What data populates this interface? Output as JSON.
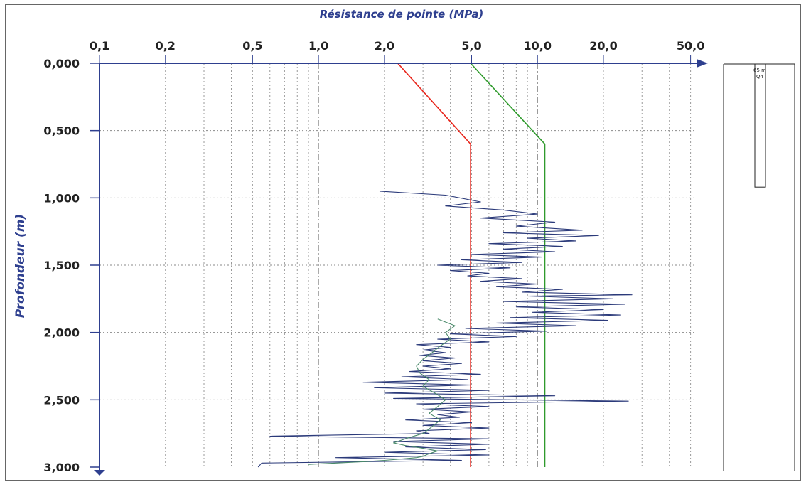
{
  "chart_data": {
    "type": "line",
    "title": "Résistance de pointe (MPa)",
    "ylabel": "Profondeur (m)",
    "x_scale": "log",
    "x_range": [
      0.1,
      60
    ],
    "y_range": [
      0,
      3
    ],
    "y_inverted": true,
    "x_tick_labels": [
      {
        "value": 0.1,
        "label": "0,1"
      },
      {
        "value": 0.2,
        "label": "0,2"
      },
      {
        "value": 0.5,
        "label": "0,5"
      },
      {
        "value": 1.0,
        "label": "1,0"
      },
      {
        "value": 2.0,
        "label": "2,0"
      },
      {
        "value": 5.0,
        "label": "5,0"
      },
      {
        "value": 10.0,
        "label": "10,0"
      },
      {
        "value": 20.0,
        "label": "20,0"
      },
      {
        "value": 50.0,
        "label": "50,0"
      }
    ],
    "y_tick_labels": [
      {
        "value": 0.0,
        "label": "0,000"
      },
      {
        "value": 0.5,
        "label": "0,500"
      },
      {
        "value": 1.0,
        "label": "1,000"
      },
      {
        "value": 1.5,
        "label": "1,500"
      },
      {
        "value": 2.0,
        "label": "2,000"
      },
      {
        "value": 2.5,
        "label": "2,500"
      },
      {
        "value": 3.0,
        "label": "3,000"
      }
    ],
    "x_grid_values": [
      0.2,
      0.3,
      0.4,
      0.5,
      0.6,
      0.7,
      0.8,
      0.9,
      2,
      3,
      4,
      5,
      6,
      7,
      8,
      9,
      20,
      30,
      40,
      50
    ],
    "x_decade_grid_values": [
      1,
      10
    ],
    "y_grid_values": [
      0.5,
      1.0,
      1.5,
      2.0,
      2.5
    ],
    "grid": true,
    "series": [
      {
        "color": "#e8241a",
        "x": [
          2.3,
          4.95,
          4.95
        ],
        "y": [
          0.0,
          0.6,
          3.0
        ]
      },
      {
        "color": "#2f9a2c",
        "x": [
          4.95,
          10.8,
          10.8
        ],
        "y": [
          0.0,
          0.6,
          3.0
        ]
      },
      {
        "color": "#2b3a7a",
        "x": [
          1.9,
          3.8,
          5.5,
          3.8,
          7.0,
          10.0,
          5.5,
          12.0,
          8.0,
          16.0,
          7.0,
          19.0,
          9.0,
          15.0,
          6.0,
          13.0,
          7.0,
          12.0,
          5.0,
          10.5,
          4.5,
          8.5,
          3.5,
          7.5,
          4.0,
          6.0,
          4.8,
          8.5,
          5.5,
          10.0,
          6.5,
          13.0,
          8.5,
          27.0,
          9.0,
          22.0,
          7.0,
          25.0,
          8.0,
          20.0,
          9.5,
          24.0,
          7.5,
          21.0,
          6.5,
          15.0,
          4.7,
          11.0,
          4.0,
          8.0,
          3.5,
          6.0,
          2.8,
          4.0,
          3.0,
          3.8,
          2.9,
          4.2,
          3.0,
          4.5,
          3.0,
          4.0,
          2.6,
          5.5,
          2.4,
          4.8,
          1.6,
          5.0,
          1.8,
          6.0,
          2.0,
          12.0,
          2.2,
          26.0,
          2.8,
          6.0,
          3.0,
          5.0,
          3.5,
          4.4,
          2.5,
          5.0,
          3.0,
          6.0,
          2.8,
          3.2,
          0.6,
          6.0,
          2.2,
          6.0,
          2.5,
          5.8,
          2.0,
          6.0,
          1.2,
          4.5,
          0.55,
          0.53
        ],
        "y": [
          0.95,
          0.98,
          1.03,
          1.06,
          1.09,
          1.12,
          1.15,
          1.18,
          1.21,
          1.24,
          1.26,
          1.28,
          1.3,
          1.32,
          1.34,
          1.36,
          1.38,
          1.4,
          1.42,
          1.44,
          1.46,
          1.48,
          1.5,
          1.52,
          1.54,
          1.56,
          1.58,
          1.6,
          1.62,
          1.64,
          1.66,
          1.68,
          1.7,
          1.72,
          1.73,
          1.75,
          1.77,
          1.79,
          1.81,
          1.83,
          1.85,
          1.87,
          1.89,
          1.91,
          1.93,
          1.95,
          1.97,
          1.99,
          2.01,
          2.03,
          2.05,
          2.07,
          2.09,
          2.11,
          2.13,
          2.15,
          2.17,
          2.19,
          2.21,
          2.23,
          2.25,
          2.27,
          2.29,
          2.31,
          2.33,
          2.35,
          2.37,
          2.39,
          2.41,
          2.43,
          2.45,
          2.47,
          2.49,
          2.51,
          2.53,
          2.55,
          2.57,
          2.59,
          2.61,
          2.63,
          2.65,
          2.67,
          2.69,
          2.71,
          2.73,
          2.75,
          2.77,
          2.79,
          2.81,
          2.83,
          2.85,
          2.87,
          2.89,
          2.91,
          2.93,
          2.95,
          2.97,
          3.0
        ]
      },
      {
        "color": "#4a8a6a",
        "x": [
          3.5,
          4.2,
          3.8,
          4.0,
          3.6,
          3.3,
          3.0,
          2.8,
          2.9,
          3.2,
          3.0,
          3.4,
          3.8,
          3.5,
          3.2,
          3.6,
          3.3,
          3.0,
          2.6,
          2.2,
          2.5,
          3.0,
          3.5,
          3.2,
          3.0,
          2.8,
          2.4,
          2.0,
          1.6,
          1.2,
          0.9
        ],
        "y": [
          1.9,
          1.95,
          2.0,
          2.05,
          2.1,
          2.15,
          2.2,
          2.25,
          2.3,
          2.35,
          2.4,
          2.45,
          2.5,
          2.55,
          2.6,
          2.65,
          2.7,
          2.75,
          2.78,
          2.82,
          2.84,
          2.86,
          2.88,
          2.9,
          2.92,
          2.93,
          2.94,
          2.95,
          2.96,
          2.97,
          2.98
        ]
      }
    ]
  },
  "log_column": {
    "label_depth": "65 m",
    "label_code": "Q4",
    "bottom_depth": 0.92
  }
}
